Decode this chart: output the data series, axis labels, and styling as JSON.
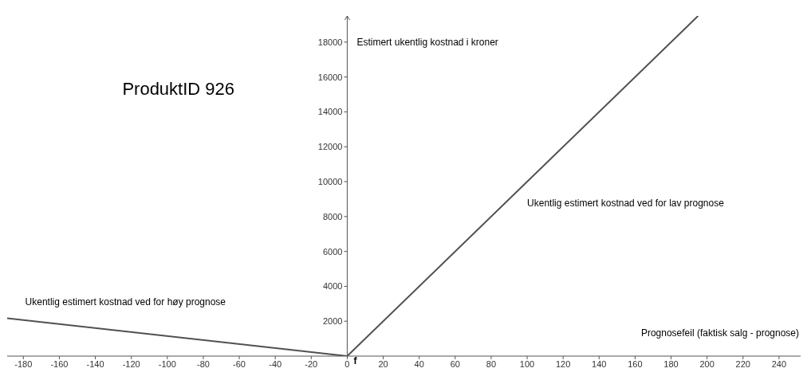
{
  "chart_data": {
    "type": "line",
    "title": "ProduktID 926",
    "xlabel": "Prognosefeil (faktisk salg - prognose)",
    "ylabel": "Estimert ukentlig kostnad i kroner",
    "annotations": [
      "f"
    ],
    "series": [
      {
        "name": "Ukentlig estimert kostnad ved for høy prognose",
        "color": "#505050",
        "x": [
          -189,
          0
        ],
        "values": [
          2170,
          0
        ]
      },
      {
        "name": "Ukentlig estimert kostnad ved for lav prognose",
        "color": "#505050",
        "x": [
          0,
          195
        ],
        "values": [
          0,
          19500
        ]
      }
    ],
    "xlim": [
      -189,
      252
    ],
    "ylim": [
      0,
      19500
    ],
    "xticks": [
      -180,
      -160,
      -140,
      -120,
      -100,
      -80,
      -60,
      -40,
      -20,
      0,
      20,
      40,
      60,
      80,
      100,
      120,
      140,
      160,
      180,
      200,
      220,
      240
    ],
    "yticks": [
      2000,
      4000,
      6000,
      8000,
      10000,
      12000,
      14000,
      16000,
      18000
    ],
    "grid": false,
    "legend": false,
    "marker": "none",
    "line_style": "solid"
  }
}
